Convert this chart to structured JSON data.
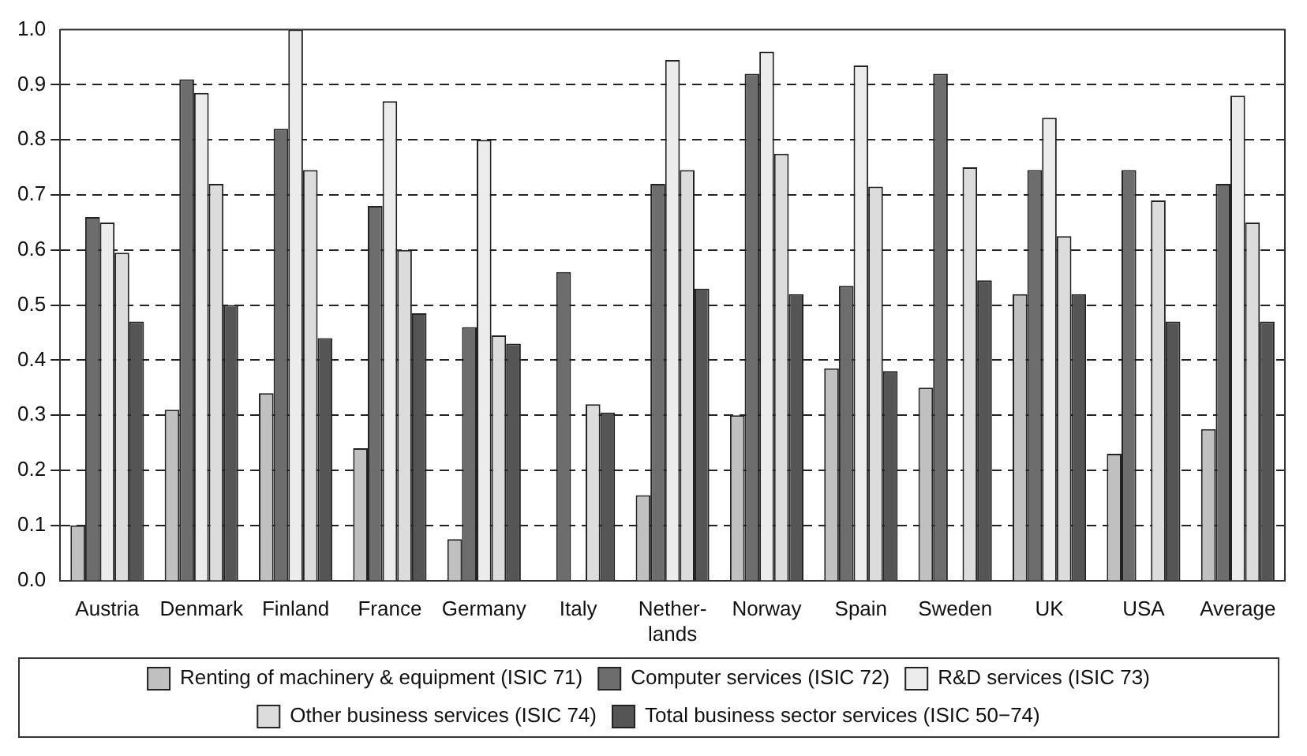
{
  "chart_data": {
    "type": "bar",
    "categories": [
      "Austria",
      "Denmark",
      "Finland",
      "France",
      "Germany",
      "Italy",
      "Nether-\nlands",
      "Norway",
      "Spain",
      "Sweden",
      "UK",
      "USA",
      "Average"
    ],
    "series": [
      {
        "name": "Renting of machinery & equipment (ISIC 71)",
        "color": "#c0c0c0",
        "values": [
          0.1,
          0.31,
          0.34,
          0.24,
          0.075,
          null,
          0.155,
          0.3,
          0.385,
          0.35,
          0.52,
          0.23,
          0.275
        ]
      },
      {
        "name": "Computer services (ISIC 72)",
        "color": "#6d6d6d",
        "values": [
          0.66,
          0.91,
          0.82,
          0.68,
          0.46,
          0.56,
          0.72,
          0.92,
          0.535,
          0.92,
          0.745,
          0.745,
          0.72
        ]
      },
      {
        "name": "R&D services (ISIC 73)",
        "color": "#ececec",
        "values": [
          0.65,
          0.885,
          1.0,
          0.87,
          0.8,
          null,
          0.945,
          0.96,
          0.935,
          null,
          0.84,
          null,
          0.88
        ]
      },
      {
        "name": "Other business services (ISIC 74)",
        "color": "#dcdcdc",
        "values": [
          0.595,
          0.72,
          0.745,
          0.6,
          0.445,
          0.32,
          0.745,
          0.775,
          0.715,
          0.75,
          0.625,
          0.69,
          0.65
        ]
      },
      {
        "name": "Total business sector services (ISIC 50−74)",
        "color": "#555555",
        "values": [
          0.47,
          0.5,
          0.44,
          0.485,
          0.43,
          0.305,
          0.53,
          0.52,
          0.38,
          0.545,
          0.52,
          0.47,
          0.47
        ]
      }
    ],
    "ylim": [
      0,
      1
    ],
    "yticks": [
      {
        "value": 0,
        "label": "0.0"
      },
      0.1,
      0.2,
      0.3,
      0.4,
      0.5,
      0.6,
      0.7,
      0.8,
      0.9,
      {
        "value": 1,
        "label": "1.0"
      }
    ],
    "grid": "y",
    "legend": "bottom"
  }
}
